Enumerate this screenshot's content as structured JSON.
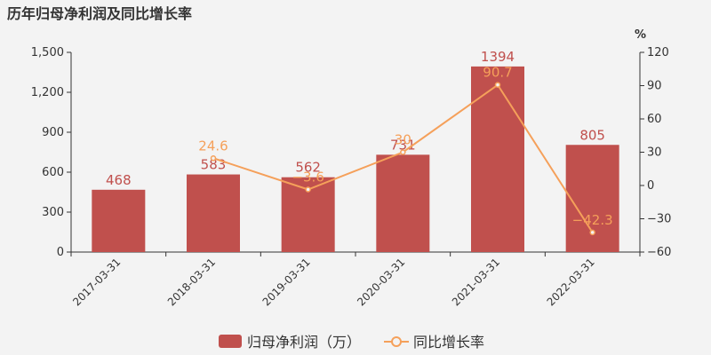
{
  "chart_data": {
    "type": "bar",
    "title": "历年归母净利润及同比增长率",
    "categories": [
      "2017-03-31",
      "2018-03-31",
      "2019-03-31",
      "2020-03-31",
      "2021-03-31",
      "2022-03-31"
    ],
    "series": [
      {
        "name": "归母净利润（万）",
        "type": "bar",
        "axis": "left",
        "values": [
          468,
          583,
          562,
          731,
          1394,
          805
        ],
        "color": "#c0504d"
      },
      {
        "name": "同比增长率",
        "type": "line",
        "axis": "right",
        "values": [
          null,
          24.6,
          -3.6,
          30,
          90.7,
          -42.3
        ],
        "color": "#f5a05a"
      }
    ],
    "left_axis": {
      "min": 0,
      "max": 1500,
      "ticks": [
        0,
        300,
        600,
        900,
        1200,
        1500
      ],
      "tick_labels": [
        "0",
        "300",
        "600",
        "900",
        "1,200",
        "1,500"
      ]
    },
    "right_axis": {
      "min": -60,
      "max": 120,
      "ticks": [
        -60,
        -30,
        0,
        30,
        60,
        90,
        120
      ],
      "tick_labels": [
        "−60",
        "−30",
        "0",
        "30",
        "60",
        "90",
        "120"
      ],
      "unit": "%"
    },
    "bar_labels": [
      "468",
      "583",
      "562",
      "731",
      "1394",
      "805"
    ],
    "line_labels": [
      "",
      "24.6",
      "−3.6",
      "30",
      "90.7",
      "−42.3"
    ],
    "legend": {
      "position": "bottom-center"
    },
    "grid": false
  }
}
